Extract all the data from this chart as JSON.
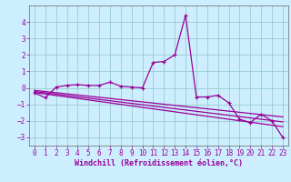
{
  "xlabel": "Windchill (Refroidissement éolien,°C)",
  "bg_color": "#cceeff",
  "grid_color": "#99cccc",
  "line_color": "#990099",
  "x": [
    0,
    1,
    2,
    3,
    4,
    5,
    6,
    7,
    8,
    9,
    10,
    11,
    12,
    13,
    14,
    15,
    16,
    17,
    18,
    19,
    20,
    21,
    22,
    23
  ],
  "y_main": [
    -0.3,
    -0.6,
    0.05,
    0.15,
    0.2,
    0.15,
    0.15,
    0.35,
    0.1,
    0.05,
    0.0,
    1.55,
    1.6,
    2.0,
    4.4,
    -0.55,
    -0.55,
    -0.45,
    -0.9,
    -1.9,
    -2.1,
    -1.6,
    -2.0,
    -3.0
  ],
  "y_reg1": [
    -0.28,
    -0.37,
    -0.46,
    -0.55,
    -0.64,
    -0.73,
    -0.82,
    -0.91,
    -1.0,
    -1.09,
    -1.18,
    -1.27,
    -1.36,
    -1.45,
    -1.54,
    -1.63,
    -1.72,
    -1.81,
    -1.9,
    -1.99,
    -2.08,
    -2.17,
    -2.26,
    -2.35
  ],
  "y_reg2": [
    -0.22,
    -0.3,
    -0.38,
    -0.46,
    -0.54,
    -0.62,
    -0.7,
    -0.78,
    -0.86,
    -0.94,
    -1.02,
    -1.1,
    -1.18,
    -1.26,
    -1.34,
    -1.42,
    -1.5,
    -1.58,
    -1.66,
    -1.74,
    -1.82,
    -1.9,
    -1.98,
    -2.06
  ],
  "y_reg3": [
    -0.15,
    -0.22,
    -0.29,
    -0.36,
    -0.43,
    -0.5,
    -0.57,
    -0.64,
    -0.71,
    -0.78,
    -0.85,
    -0.92,
    -0.99,
    -1.06,
    -1.13,
    -1.2,
    -1.27,
    -1.34,
    -1.41,
    -1.48,
    -1.55,
    -1.62,
    -1.69,
    -1.76
  ],
  "ylim": [
    -3.5,
    5.0
  ],
  "xlim": [
    -0.5,
    23.5
  ],
  "yticks": [
    -3,
    -2,
    -1,
    0,
    1,
    2,
    3,
    4
  ],
  "xticks": [
    0,
    1,
    2,
    3,
    4,
    5,
    6,
    7,
    8,
    9,
    10,
    11,
    12,
    13,
    14,
    15,
    16,
    17,
    18,
    19,
    20,
    21,
    22,
    23
  ],
  "tick_fontsize": 5.5,
  "xlabel_fontsize": 6.0
}
